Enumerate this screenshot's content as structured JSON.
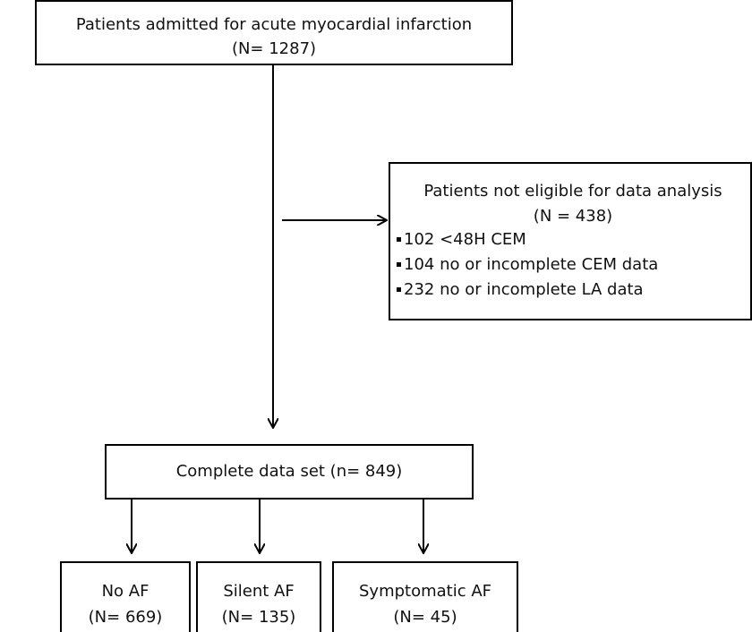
{
  "top": {
    "title": "Patients admitted for acute myocardial infarction",
    "count": "(N= 1287)"
  },
  "excluded": {
    "title": "Patients not eligible for data analysis",
    "count": "(N = 438)",
    "items": [
      "102 <48H CEM",
      "104 no or incomplete CEM data",
      "232 no or incomplete LA data"
    ]
  },
  "complete": {
    "label": "Complete data set (n= 849)"
  },
  "groups": [
    {
      "label": "No AF",
      "count": "(N= 669)"
    },
    {
      "label": "Silent AF",
      "count": "(N= 135)"
    },
    {
      "label": "Symptomatic AF",
      "count": "(N= 45)"
    }
  ]
}
